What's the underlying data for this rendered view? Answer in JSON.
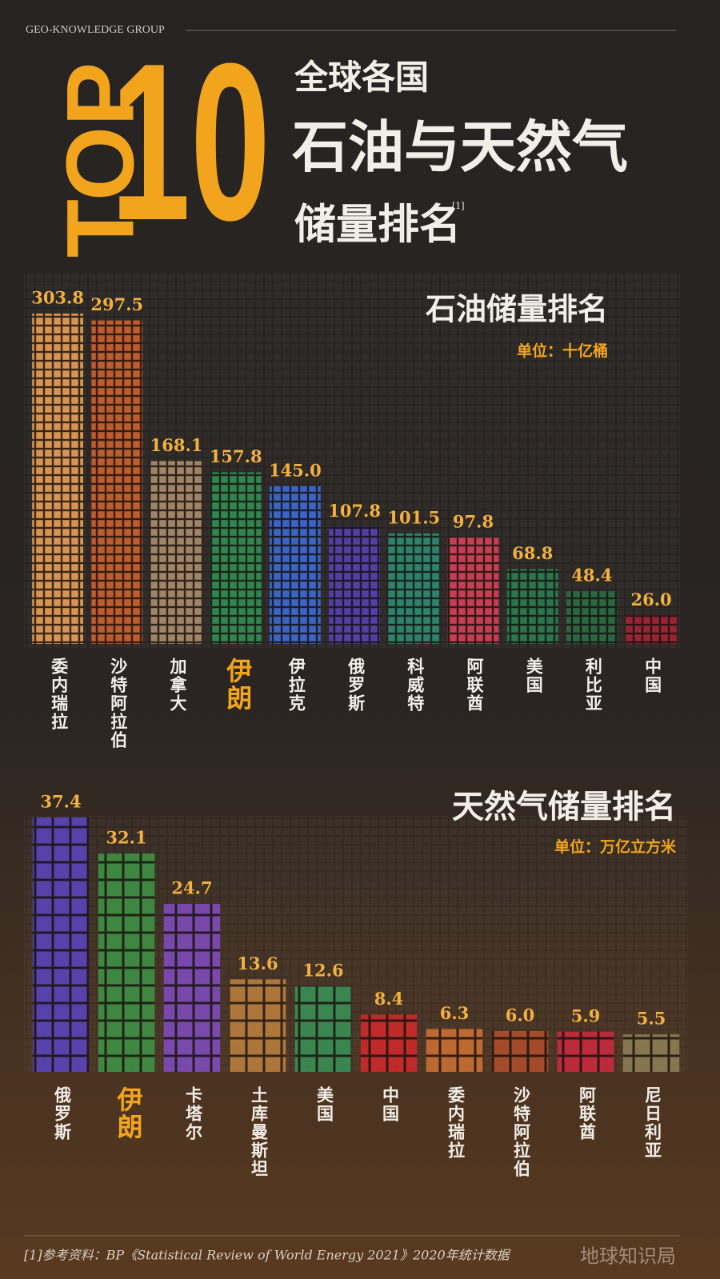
{
  "header": {
    "group": "GEO-KNOWLEDGE GROUP",
    "top": "TOP",
    "ten": "10",
    "line1": "全球各国",
    "line2": "石油与天然气",
    "line3": "储量排名",
    "note": "[1]"
  },
  "chart_data": [
    {
      "type": "bar",
      "title": "石油储量排名",
      "unit": "单位：十亿桶",
      "categories": [
        "委内瑞拉",
        "沙特阿拉伯",
        "加拿大",
        "伊朗",
        "伊拉克",
        "俄罗斯",
        "科威特",
        "阿联酋",
        "美国",
        "利比亚",
        "中国"
      ],
      "values": [
        303.8,
        297.5,
        168.1,
        157.8,
        145.0,
        107.8,
        101.5,
        97.8,
        68.8,
        48.4,
        26.0
      ],
      "value_labels": [
        "303.8",
        "297.5",
        "168.1",
        "157.8",
        "145.0",
        "107.8",
        "101.5",
        "97.8",
        "68.8",
        "48.4",
        "26.0"
      ],
      "colors": [
        "#e09a52",
        "#c65f2c",
        "#a8896a",
        "#2f8a52",
        "#3b67cf",
        "#5340ad",
        "#2b8872",
        "#cf3f55",
        "#2a7850",
        "#2a6a42",
        "#9e2434"
      ],
      "highlight": 3
    },
    {
      "type": "bar",
      "title": "天然气储量排名",
      "unit": "单位：万亿立方米",
      "categories": [
        "俄罗斯",
        "伊朗",
        "卡塔尔",
        "土库曼斯坦",
        "美国",
        "中国",
        "委内瑞拉",
        "沙特阿拉伯",
        "阿联酋",
        "尼日利亚"
      ],
      "values": [
        37.4,
        32.1,
        24.7,
        13.6,
        12.6,
        8.4,
        6.3,
        6.0,
        5.9,
        5.5
      ],
      "value_labels": [
        "37.4",
        "32.1",
        "24.7",
        "13.6",
        "12.6",
        "8.4",
        "6.3",
        "6.0",
        "5.9",
        "5.5"
      ],
      "colors": [
        "#5a42b2",
        "#3f8c42",
        "#7b4ab2",
        "#b27a3c",
        "#3a8a52",
        "#c42a2a",
        "#c46c32",
        "#a84c2a",
        "#c22a3c",
        "#8a7a52"
      ],
      "highlight": 1
    }
  ],
  "footer": {
    "source": "[1]参考资料：BP《Statistical Review of World Energy 2021》2020年统计数据",
    "brand": "地球知识局"
  }
}
